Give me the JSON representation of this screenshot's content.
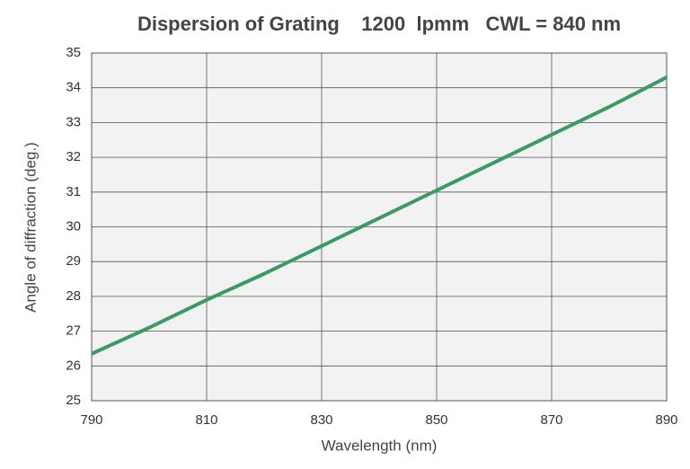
{
  "chart_data": {
    "type": "line",
    "title": "Dispersion of Grating    1200  lpmm   CWL = 840 nm",
    "x_label": "Wavelength (nm)",
    "y_label": "Angle of diffraction (deg.)",
    "x": [
      790,
      800,
      810,
      820,
      830,
      840,
      850,
      860,
      870,
      880,
      890
    ],
    "series": [
      {
        "name": "Angle of diffraction",
        "color": "#3a9a64",
        "values": [
          26.35,
          27.1,
          27.9,
          28.65,
          29.45,
          30.25,
          31.05,
          31.85,
          32.65,
          33.45,
          34.3
        ]
      }
    ],
    "xlim": [
      790,
      890
    ],
    "xticks": [
      790,
      810,
      830,
      850,
      870,
      890
    ],
    "ylim": [
      25,
      35
    ],
    "yticks": [
      25,
      26,
      27,
      28,
      29,
      30,
      31,
      32,
      33,
      34,
      35
    ],
    "grid": true
  }
}
